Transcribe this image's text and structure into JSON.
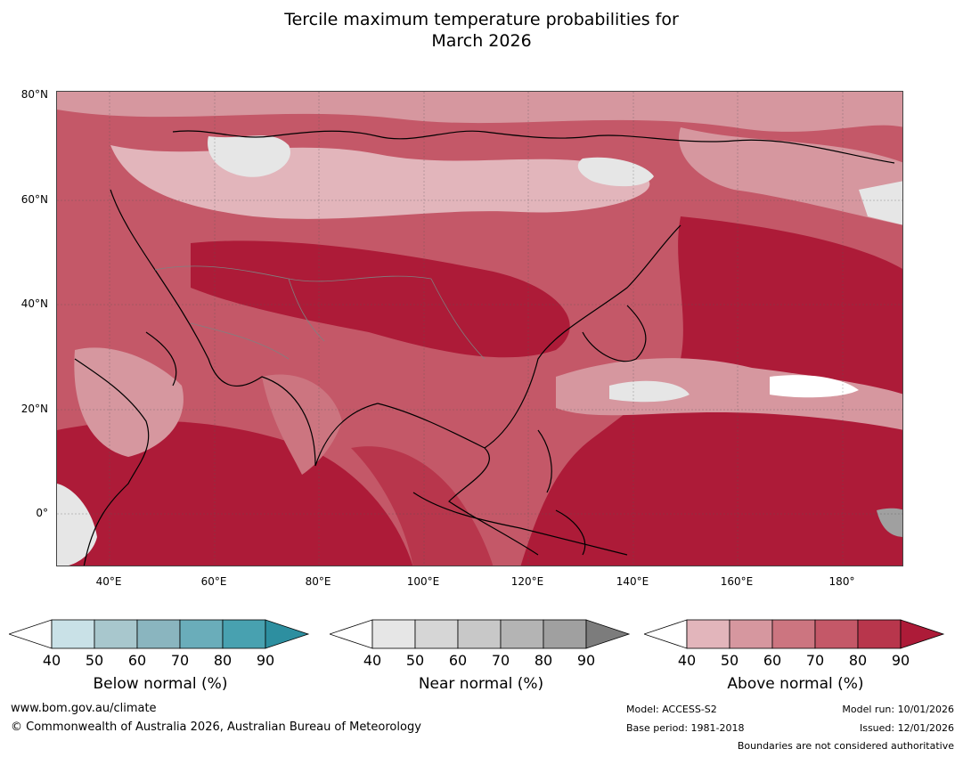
{
  "title": {
    "line1": "Tercile maximum temperature probabilities for",
    "line2": "March 2026"
  },
  "map": {
    "lat_labels": [
      "80°N",
      "60°N",
      "40°N",
      "20°N",
      "0°"
    ],
    "lon_labels": [
      "40°E",
      "60°E",
      "80°E",
      "100°E",
      "120°E",
      "140°E",
      "160°E",
      "180°"
    ],
    "dominant_color": "#b51c3a"
  },
  "colorbars": [
    {
      "title": "Below normal (%)",
      "ticks": [
        "40",
        "50",
        "60",
        "70",
        "80",
        "90"
      ],
      "colors": [
        "#c9e1e7",
        "#a8c7cd",
        "#8ab5bf",
        "#6aadba",
        "#48a1b0",
        "#2d8fa0"
      ]
    },
    {
      "title": "Near normal (%)",
      "ticks": [
        "40",
        "50",
        "60",
        "70",
        "80",
        "90"
      ],
      "colors": [
        "#e6e6e6",
        "#d6d6d6",
        "#c8c8c8",
        "#b4b4b4",
        "#a0a0a0",
        "#7c7c7c"
      ]
    },
    {
      "title": "Above normal (%)",
      "ticks": [
        "40",
        "50",
        "60",
        "70",
        "80",
        "90"
      ],
      "colors": [
        "#e2b5bb",
        "#d6979f",
        "#cc7580",
        "#c45868",
        "#b8364c",
        "#ad1b38"
      ]
    }
  ],
  "footer": {
    "website": "www.bom.gov.au/climate",
    "copyright": "© Commonwealth of Australia 2026, Australian Bureau of Meteorology",
    "model": "Model: ACCESS-S2",
    "base_period": "Base period: 1981-2018",
    "model_run": "Model run: 10/01/2026",
    "issued": "Issued: 12/01/2026",
    "disclaimer": "Boundaries are not considered authoritative"
  }
}
